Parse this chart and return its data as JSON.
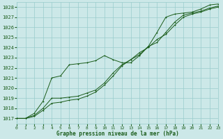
{
  "bg_color": "#cce8e8",
  "grid_color": "#99cccc",
  "line_color": "#1a5c1a",
  "xlabel": "Graphe pression niveau de la mer (hPa)",
  "xlim": [
    0,
    23
  ],
  "ylim": [
    1016.5,
    1028.5
  ],
  "yticks": [
    1017,
    1018,
    1019,
    1020,
    1021,
    1022,
    1023,
    1024,
    1025,
    1026,
    1027,
    1028
  ],
  "xticks": [
    0,
    1,
    2,
    3,
    4,
    5,
    6,
    7,
    8,
    9,
    10,
    11,
    12,
    13,
    14,
    15,
    16,
    17,
    18,
    19,
    20,
    21,
    22,
    23
  ],
  "series1_x": [
    0,
    1,
    2,
    3,
    4,
    5,
    6,
    7,
    8,
    9,
    10,
    11,
    12,
    13,
    14,
    15,
    16,
    17,
    18,
    19,
    20,
    21,
    22,
    23
  ],
  "series1_y": [
    1017.0,
    1017.0,
    1017.5,
    1018.7,
    1021.0,
    1021.2,
    1022.3,
    1022.4,
    1022.5,
    1022.7,
    1023.2,
    1022.8,
    1022.5,
    1022.5,
    1023.2,
    1024.1,
    1025.5,
    1027.0,
    1027.3,
    1027.4,
    1027.5,
    1027.8,
    1028.2,
    1028.3
  ],
  "series2_x": [
    0,
    1,
    2,
    3,
    4,
    5,
    6,
    7,
    8,
    9,
    10,
    11,
    12,
    13,
    14,
    15,
    16,
    17,
    18,
    19,
    20,
    21,
    22,
    23
  ],
  "series2_y": [
    1017.0,
    1017.0,
    1017.3,
    1018.0,
    1019.0,
    1019.0,
    1019.1,
    1019.2,
    1019.5,
    1019.8,
    1020.5,
    1021.5,
    1022.3,
    1022.8,
    1023.3,
    1024.1,
    1024.5,
    1025.5,
    1026.5,
    1027.2,
    1027.4,
    1027.6,
    1027.9,
    1028.1
  ],
  "series3_x": [
    0,
    1,
    2,
    3,
    4,
    5,
    6,
    7,
    8,
    9,
    10,
    11,
    12,
    13,
    14,
    15,
    16,
    17,
    18,
    19,
    20,
    21,
    22,
    23
  ],
  "series3_y": [
    1017.0,
    1017.0,
    1017.2,
    1017.8,
    1018.5,
    1018.6,
    1018.8,
    1018.9,
    1019.2,
    1019.6,
    1020.3,
    1021.2,
    1022.2,
    1022.8,
    1023.5,
    1024.0,
    1024.8,
    1025.3,
    1026.2,
    1027.0,
    1027.3,
    1027.5,
    1027.8,
    1028.0
  ]
}
